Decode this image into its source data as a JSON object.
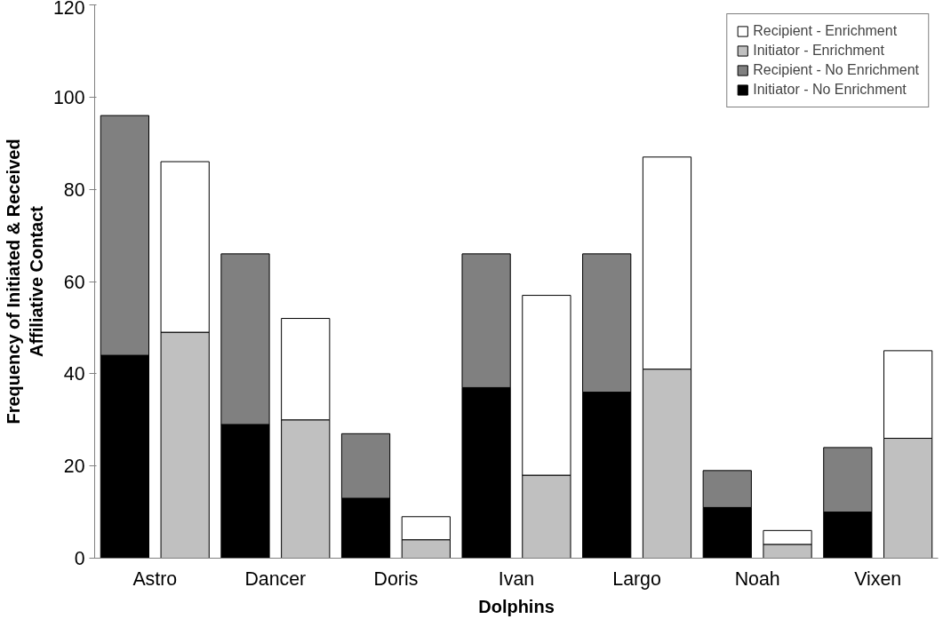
{
  "chart_data": {
    "type": "bar",
    "stacked": true,
    "xlabel": "Dolphins",
    "ylabel": "Frequency of Initiated & Received\nAffiliative Contact",
    "categories": [
      "Astro",
      null,
      "Dancer",
      null,
      "Doris",
      null,
      "Ivan",
      null,
      "Largo",
      null,
      "Noah",
      null,
      "Vixen",
      null
    ],
    "series": [
      {
        "name": "Initiator - No Enrichment",
        "color": "#000000",
        "values": [
          44,
          null,
          29,
          null,
          13,
          null,
          37,
          null,
          36,
          null,
          11,
          null,
          10,
          null
        ]
      },
      {
        "name": "Recipient - No Enrichment",
        "color": "#808080",
        "values": [
          52,
          null,
          37,
          null,
          14,
          null,
          29,
          null,
          30,
          null,
          8,
          null,
          14,
          null
        ]
      },
      {
        "name": "Initiator - Enrichment",
        "color": "#c0c0c0",
        "values": [
          null,
          49,
          null,
          30,
          null,
          4,
          null,
          18,
          null,
          41,
          null,
          3,
          null,
          26
        ]
      },
      {
        "name": "Recipient - Enrichment",
        "color": "#ffffff",
        "values": [
          null,
          37,
          null,
          22,
          null,
          5,
          null,
          39,
          null,
          46,
          null,
          3,
          null,
          19
        ]
      }
    ],
    "ylim": [
      0,
      120
    ],
    "yticks": [
      0,
      20,
      40,
      60,
      80,
      100,
      120
    ],
    "grid": false,
    "legend": "top right"
  }
}
